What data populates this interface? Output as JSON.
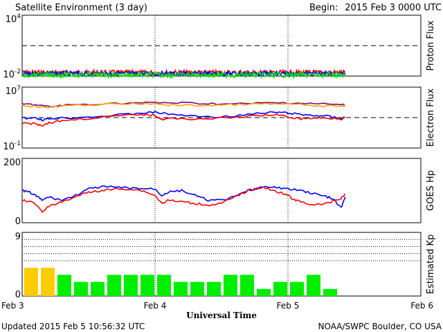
{
  "header": {
    "title": "Satellite Environment (3 day)",
    "begin_label": "Begin:",
    "begin_value": "2015 Feb 3 0000 UTC"
  },
  "footer": {
    "updated": "Updated 2015 Feb  5 10:56:32 UTC",
    "credit": "NOAA/SWPC Boulder, CO USA"
  },
  "chart_data": [
    {
      "type": "line",
      "ylabel": "Proton Flux",
      "yscale": "log",
      "ylim": [
        0.01,
        10000
      ],
      "ytick_labels": [
        "10^4",
        "10^-2"
      ],
      "threshold": 10,
      "series": [
        {
          "color": "#ff0000",
          "level": 0.022
        },
        {
          "color": "#0000ff",
          "level": 0.017
        },
        {
          "color": "#00e000",
          "level": 0.013
        }
      ],
      "data_end_day": 2.43
    },
    {
      "type": "line",
      "ylabel": "Electron Flux",
      "yscale": "log",
      "ylim": [
        0.1,
        10000000
      ],
      "ytick_labels": [
        "10^7",
        "10^-1"
      ],
      "threshold": 1000,
      "series": [
        {
          "color": "#800080",
          "x": [
            0,
            0.1,
            0.2,
            0.3,
            0.5,
            0.8,
            1.0,
            1.2,
            1.4,
            1.6,
            1.8,
            2.0,
            2.2,
            2.4,
            2.43
          ],
          "y": [
            60000,
            50000,
            25000,
            40000,
            60000,
            80000,
            90000,
            85000,
            70000,
            60000,
            80000,
            90000,
            70000,
            50000,
            45000
          ]
        },
        {
          "color": "#ffa500",
          "x": [
            0,
            0.1,
            0.2,
            0.3,
            0.5,
            0.8,
            1.0,
            1.2,
            1.4,
            1.6,
            1.8,
            2.0,
            2.2,
            2.4,
            2.43
          ],
          "y": [
            40000,
            30000,
            20000,
            30000,
            50000,
            60000,
            60000,
            40000,
            40000,
            50000,
            60000,
            60000,
            35000,
            30000,
            40000
          ]
        },
        {
          "color": "#0000ff",
          "x": [
            0,
            0.1,
            0.15,
            0.2,
            0.3,
            0.5,
            0.7,
            0.9,
            1.0,
            1.1,
            1.3,
            1.5,
            1.7,
            1.9,
            2.0,
            2.1,
            2.2,
            2.3,
            2.4,
            2.43
          ],
          "y": [
            800,
            1000,
            500,
            700,
            900,
            1200,
            2000,
            4000,
            5000,
            3000,
            1500,
            1200,
            2500,
            5000,
            4000,
            2500,
            2000,
            1500,
            600,
            1000
          ]
        },
        {
          "color": "#ff0000",
          "x": [
            0,
            0.1,
            0.15,
            0.2,
            0.3,
            0.5,
            0.7,
            0.9,
            1.0,
            1.05,
            1.1,
            1.3,
            1.5,
            1.7,
            1.9,
            2.0,
            2.1,
            2.2,
            2.3,
            2.4,
            2.43
          ],
          "y": [
            200,
            150,
            100,
            200,
            400,
            800,
            1500,
            2500,
            2000,
            600,
            700,
            700,
            800,
            1400,
            2500,
            1200,
            700,
            900,
            800,
            900,
            1100
          ]
        }
      ],
      "data_end_day": 2.43
    },
    {
      "type": "line",
      "ylabel": "GOES Hp",
      "ylim": [
        0,
        200
      ],
      "ytick_labels": [
        "200",
        "0"
      ],
      "series": [
        {
          "color": "#0000ff",
          "x": [
            0,
            0.05,
            0.1,
            0.15,
            0.2,
            0.3,
            0.4,
            0.5,
            0.6,
            0.7,
            0.8,
            0.9,
            1.0,
            1.05,
            1.1,
            1.2,
            1.3,
            1.4,
            1.5,
            1.6,
            1.7,
            1.8,
            1.9,
            2.0,
            2.1,
            2.2,
            2.3,
            2.35,
            2.4,
            2.43
          ],
          "y": [
            100,
            95,
            85,
            70,
            80,
            70,
            85,
            105,
            112,
            110,
            108,
            106,
            105,
            85,
            95,
            100,
            85,
            70,
            70,
            80,
            100,
            110,
            110,
            105,
            100,
            90,
            80,
            70,
            45,
            80
          ]
        },
        {
          "color": "#ff0000",
          "x": [
            0,
            0.1,
            0.15,
            0.2,
            0.3,
            0.4,
            0.5,
            0.6,
            0.7,
            0.8,
            0.9,
            1.0,
            1.05,
            1.1,
            1.2,
            1.3,
            1.4,
            1.5,
            1.6,
            1.7,
            1.8,
            1.9,
            2.0,
            2.05,
            2.1,
            2.2,
            2.3,
            2.35,
            2.4,
            2.43
          ],
          "y": [
            70,
            60,
            35,
            50,
            65,
            80,
            95,
            100,
            105,
            105,
            100,
            85,
            60,
            70,
            65,
            60,
            55,
            60,
            80,
            100,
            110,
            100,
            85,
            70,
            65,
            55,
            60,
            70,
            75,
            90
          ]
        }
      ],
      "data_end_day": 2.43
    },
    {
      "type": "bar",
      "ylabel": "Estimated Kp",
      "ylim": [
        0,
        9
      ],
      "ytick_labels": [
        "9",
        "0"
      ],
      "dotted_levels": [
        5,
        6,
        7,
        8,
        9
      ],
      "bar_width_hours": 3,
      "values": [
        4,
        4,
        3,
        2,
        2,
        3,
        3,
        3,
        3,
        2,
        2,
        2,
        3,
        3,
        1,
        2,
        2,
        3,
        1
      ],
      "colors": [
        "#ffcc00",
        "#ffcc00",
        "#00ee00",
        "#00ee00",
        "#00ee00",
        "#00ee00",
        "#00ee00",
        "#00ee00",
        "#00ee00",
        "#00ee00",
        "#00ee00",
        "#00ee00",
        "#00ee00",
        "#00ee00",
        "#00ee00",
        "#00ee00",
        "#00ee00",
        "#00ee00",
        "#00ee00"
      ]
    }
  ],
  "x_axis": {
    "label": "Universal Time",
    "ticks": [
      "Feb 3",
      "Feb 4",
      "Feb 5",
      "Feb 6"
    ],
    "xlim_days": [
      0,
      3
    ],
    "day_dividers": [
      1,
      2
    ]
  }
}
